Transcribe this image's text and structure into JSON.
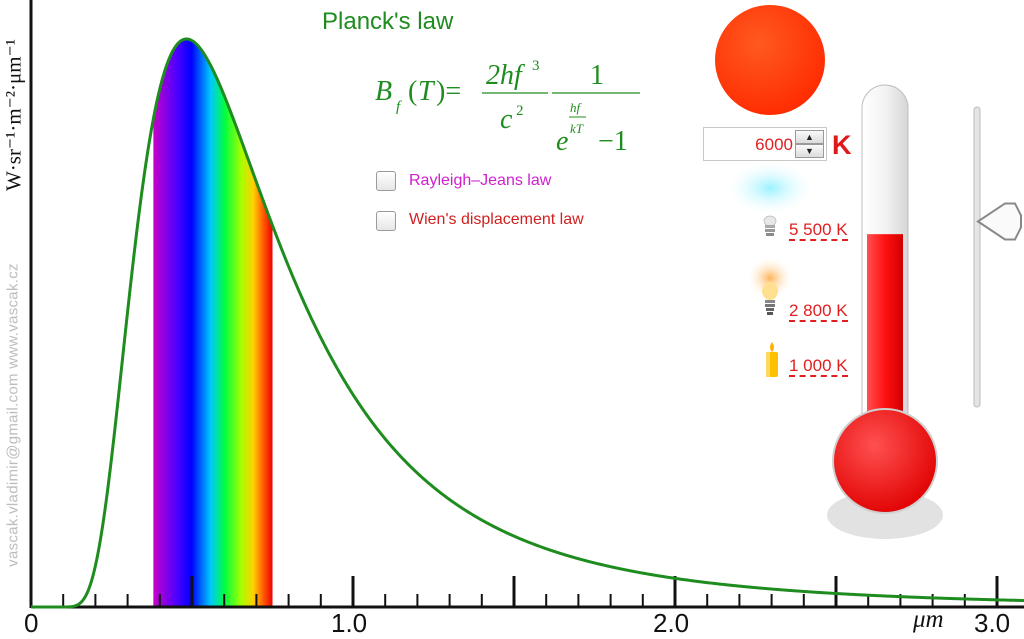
{
  "title": "Planck's law",
  "y_axis_label": "W·sr⁻¹·m⁻²·μm⁻¹",
  "credits": "vascak.vladimir@gmail.com   www.vascak.cz",
  "options": {
    "rayleigh_jeans_label": "Rayleigh–Jeans law",
    "rayleigh_jeans_checked": false,
    "wien_label": "Wien's displacement law",
    "wien_checked": false
  },
  "temperature": {
    "value": "6000",
    "unit": "K"
  },
  "references": [
    {
      "label": "5 500 K",
      "icon": "led-bulb-icon"
    },
    {
      "label": "2 800 K",
      "icon": "light-bulb-icon"
    },
    {
      "label": "1 000 K",
      "icon": "candle-icon"
    }
  ],
  "thermometer_level": 0.62,
  "slider_level": 0.62,
  "colors": {
    "curve": "#1e8c1e",
    "temperature_text": "#e02020",
    "star": "#ff3a10",
    "mercury": "#ff2020",
    "rayleigh_label": "#d020d0",
    "wien_label": "#d02020"
  },
  "chart_data": {
    "type": "line",
    "title": "Planck's law",
    "xlabel": "μm",
    "ylabel": "W·sr⁻¹·m⁻²·μm⁻¹",
    "xlim": [
      0,
      3.0
    ],
    "x_ticks": [
      "0",
      "1.0",
      "2.0",
      "3.0"
    ],
    "x_tick_values": [
      0,
      1.0,
      2.0,
      3.0
    ],
    "temperature_K": 6000,
    "visible_band_um": [
      0.38,
      0.75
    ],
    "series": [
      {
        "x": [
          0.1,
          0.2,
          0.3,
          0.4,
          0.5,
          0.6,
          0.7,
          0.8,
          0.9,
          1.0,
          1.2,
          1.4,
          1.6,
          1.8,
          2.0,
          2.4,
          2.8,
          3.0
        ],
        "y": [
          0.0,
          0.14,
          0.58,
          0.89,
          0.99,
          0.99,
          0.93,
          0.84,
          0.74,
          0.65,
          0.49,
          0.37,
          0.28,
          0.22,
          0.17,
          0.11,
          0.07,
          0.06
        ]
      }
    ]
  }
}
